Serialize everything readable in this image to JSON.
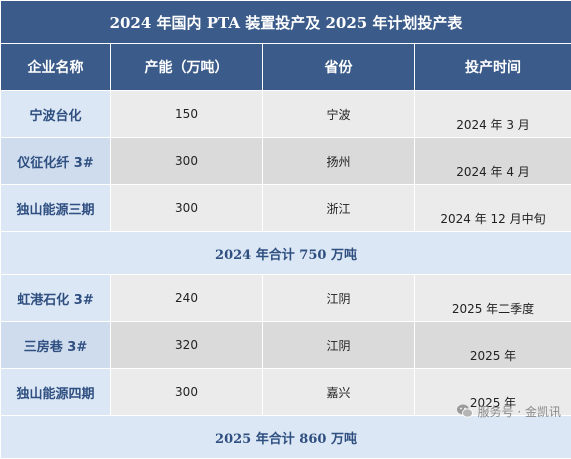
{
  "table": {
    "title": "2024 年国内 PTA 装置投产及 2025 年计划投产表",
    "headers": [
      "企业名称",
      "产能（万吨）",
      "省份",
      "投产时间"
    ],
    "rows": [
      {
        "name": "宁波台化",
        "capacity": "150",
        "province": "宁波",
        "time": "2024 年 3 月"
      },
      {
        "name": "仪征化纤 3#",
        "capacity": "300",
        "province": "扬州",
        "time": "2024 年 4 月"
      },
      {
        "name": "独山能源三期",
        "capacity": "300",
        "province": "浙江",
        "time": "2024 年 12 月中旬"
      }
    ],
    "summary_2024": "2024 年合计 750 万吨",
    "rows_2025": [
      {
        "name": "虹港石化 3#",
        "capacity": "240",
        "province": "江阴",
        "time": "2025 年二季度"
      },
      {
        "name": "三房巷 3#",
        "capacity": "320",
        "province": "江阴",
        "time": "2025 年"
      },
      {
        "name": "独山能源四期",
        "capacity": "300",
        "province": "嘉兴",
        "time": "2025 年"
      }
    ],
    "summary_2025": "2025 年合计 860 万吨"
  },
  "watermark": {
    "text": "服务号 · 金凯讯",
    "icon": "wechat-icon"
  },
  "colors": {
    "header_bg": "#3b5b8a",
    "name_text": "#2f4f80",
    "summary_bg": "#dbe7f5"
  }
}
